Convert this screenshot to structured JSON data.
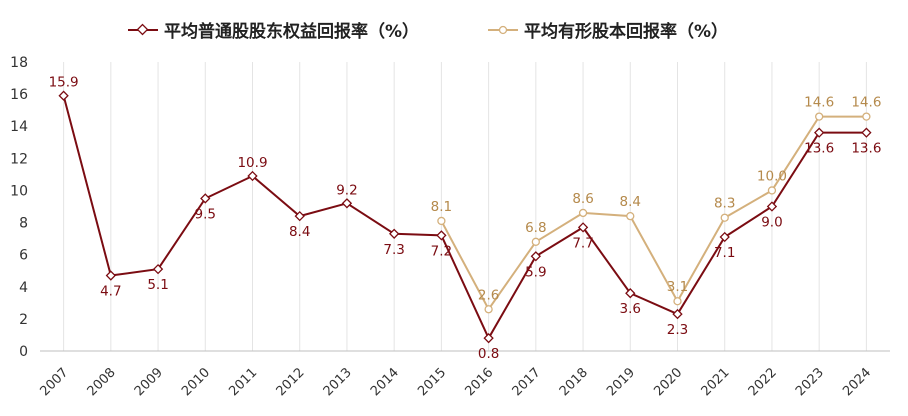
{
  "chart_data": {
    "type": "line",
    "categories": [
      "2007",
      "2008",
      "2009",
      "2010",
      "2011",
      "2012",
      "2013",
      "2014",
      "2015",
      "2016",
      "2017",
      "2018",
      "2019",
      "2020",
      "2021",
      "2022",
      "2023",
      "2024"
    ],
    "series": [
      {
        "name": "平均普通股股东权益回报率（%）",
        "color": "#7b0c12",
        "values": [
          15.9,
          4.7,
          5.1,
          9.5,
          10.9,
          8.4,
          9.2,
          7.3,
          7.2,
          0.8,
          5.9,
          7.7,
          3.6,
          2.3,
          7.1,
          9.0,
          13.6,
          13.6
        ],
        "labels": [
          "15.9",
          "4.7",
          "5.1",
          "9.5",
          "10.9",
          "8.4",
          "9.2",
          "7.3",
          "7.2",
          "0.8",
          "5.9",
          "7.7",
          "3.6",
          "2.3",
          "7.1",
          "9.0",
          "13.6",
          "13.6"
        ]
      },
      {
        "name": "平均有形股本回报率（%）",
        "color": "#d4b07c",
        "label_color": "#b58a4c",
        "values": [
          null,
          null,
          null,
          null,
          null,
          null,
          null,
          null,
          8.1,
          2.6,
          6.8,
          8.6,
          8.4,
          3.1,
          8.3,
          10.0,
          14.6,
          14.6
        ],
        "labels": [
          "",
          "",
          "",
          "",
          "",
          "",
          "",
          "",
          "8.1",
          "2.6",
          "6.8",
          "8.6",
          "8.4",
          "3.1",
          "8.3",
          "10.0",
          "14.6",
          "14.6"
        ]
      }
    ],
    "ylim": [
      0,
      18
    ],
    "yticks": [
      "0",
      "2",
      "4",
      "6",
      "8",
      "10",
      "12",
      "14",
      "16",
      "18"
    ],
    "grid": "vertical",
    "legend_position": "top-center"
  }
}
